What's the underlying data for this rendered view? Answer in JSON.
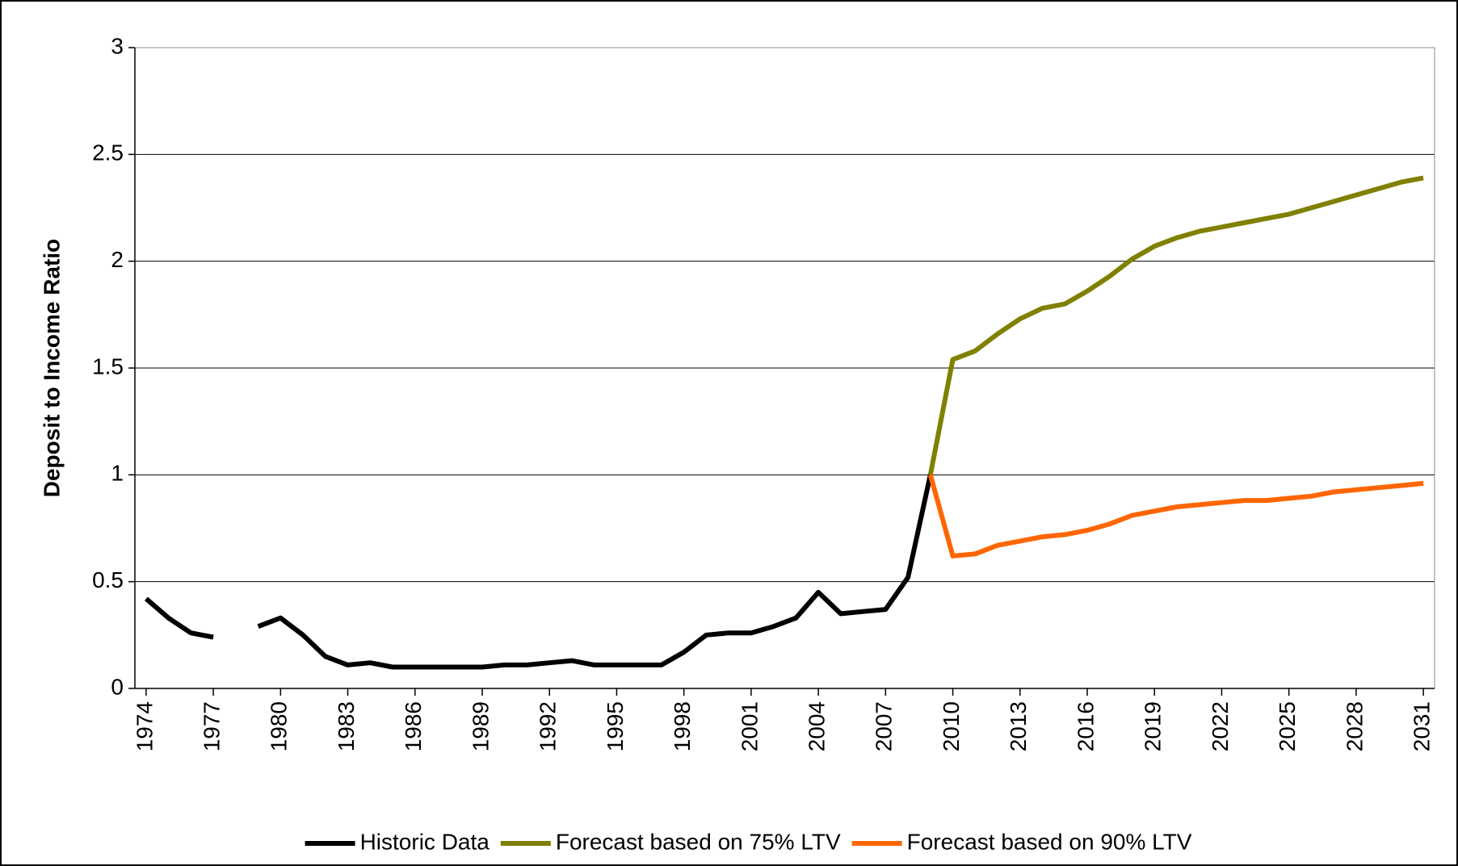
{
  "chart_data": {
    "type": "line",
    "ylabel": "Deposit to Income Ratio",
    "x": [
      1974,
      1975,
      1976,
      1977,
      1978,
      1979,
      1980,
      1981,
      1982,
      1983,
      1984,
      1985,
      1986,
      1987,
      1988,
      1989,
      1990,
      1991,
      1992,
      1993,
      1994,
      1995,
      1996,
      1997,
      1998,
      1999,
      2000,
      2001,
      2002,
      2003,
      2004,
      2005,
      2006,
      2007,
      2008,
      2009,
      2010,
      2011,
      2012,
      2013,
      2014,
      2015,
      2016,
      2017,
      2018,
      2019,
      2020,
      2021,
      2022,
      2023,
      2024,
      2025,
      2026,
      2027,
      2028,
      2029,
      2030,
      2031
    ],
    "xlim": [
      1973.5,
      2031.5
    ],
    "xticks": [
      1974,
      1977,
      1980,
      1983,
      1986,
      1989,
      1992,
      1995,
      1998,
      2001,
      2004,
      2007,
      2010,
      2013,
      2016,
      2019,
      2022,
      2025,
      2028,
      2031
    ],
    "ylim": [
      0,
      3
    ],
    "yticks": [
      0,
      0.5,
      1,
      1.5,
      2,
      2.5,
      3
    ],
    "grid": true,
    "legend": "bottom",
    "series": [
      {
        "name": "Historic Data",
        "color": "#000000",
        "values": [
          0.42,
          0.33,
          0.26,
          0.24,
          null,
          0.29,
          0.33,
          0.25,
          0.15,
          0.11,
          0.12,
          0.1,
          0.1,
          0.1,
          0.1,
          0.1,
          0.11,
          0.11,
          0.12,
          0.13,
          0.11,
          0.11,
          0.11,
          0.11,
          0.17,
          0.25,
          0.26,
          0.26,
          0.29,
          0.33,
          0.45,
          0.35,
          0.36,
          0.37,
          0.52,
          1.0,
          null,
          null,
          null,
          null,
          null,
          null,
          null,
          null,
          null,
          null,
          null,
          null,
          null,
          null,
          null,
          null,
          null,
          null,
          null,
          null,
          null,
          null
        ]
      },
      {
        "name": "Forecast based on 75% LTV",
        "color": "#808000",
        "values": [
          null,
          null,
          null,
          null,
          null,
          null,
          null,
          null,
          null,
          null,
          null,
          null,
          null,
          null,
          null,
          null,
          null,
          null,
          null,
          null,
          null,
          null,
          null,
          null,
          null,
          null,
          null,
          null,
          null,
          null,
          null,
          null,
          null,
          null,
          null,
          1.0,
          1.54,
          1.58,
          1.66,
          1.73,
          1.78,
          1.8,
          1.86,
          1.93,
          2.01,
          2.07,
          2.11,
          2.14,
          2.16,
          2.18,
          2.2,
          2.22,
          2.25,
          2.28,
          2.31,
          2.34,
          2.37,
          2.39
        ]
      },
      {
        "name": "Forecast based on 90% LTV",
        "color": "#ff6600",
        "values": [
          null,
          null,
          null,
          null,
          null,
          null,
          null,
          null,
          null,
          null,
          null,
          null,
          null,
          null,
          null,
          null,
          null,
          null,
          null,
          null,
          null,
          null,
          null,
          null,
          null,
          null,
          null,
          null,
          null,
          null,
          null,
          null,
          null,
          null,
          null,
          1.0,
          0.62,
          0.63,
          0.67,
          0.69,
          0.71,
          0.72,
          0.74,
          0.77,
          0.81,
          0.83,
          0.85,
          0.86,
          0.87,
          0.88,
          0.88,
          0.89,
          0.9,
          0.92,
          0.93,
          0.94,
          0.95,
          0.96
        ]
      }
    ]
  }
}
